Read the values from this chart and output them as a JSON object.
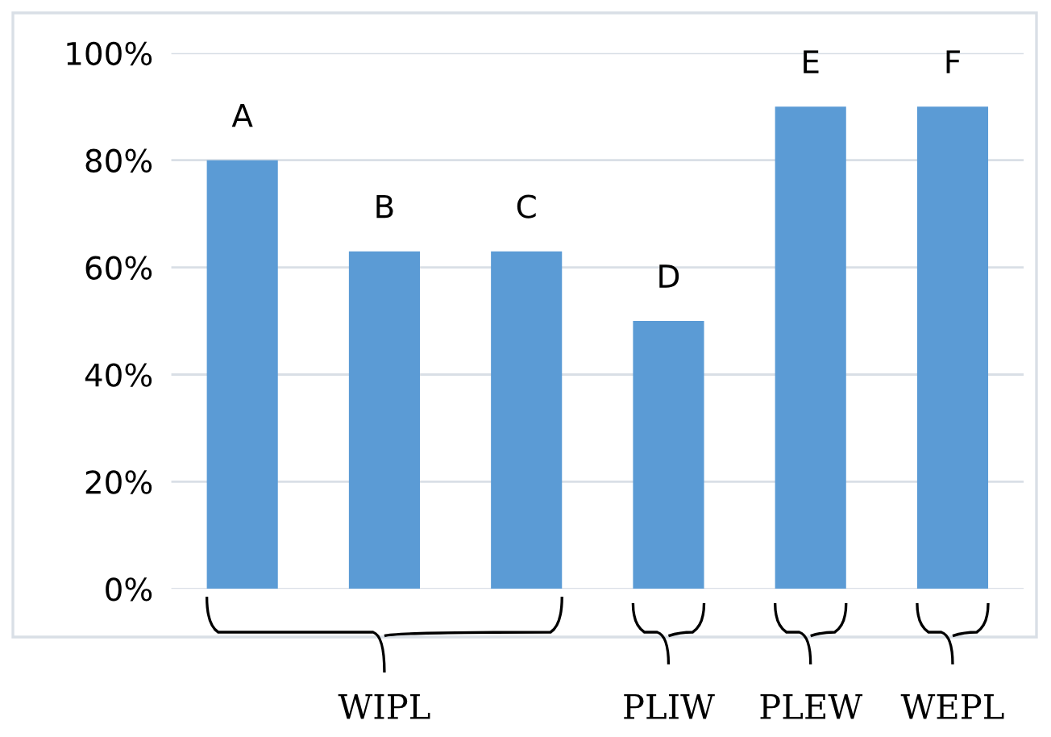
{
  "chart_data": {
    "type": "bar",
    "categories": [
      "A",
      "B",
      "C",
      "D",
      "E",
      "F"
    ],
    "values": [
      80,
      63,
      63,
      50,
      90,
      90
    ],
    "color": "#5b9bd5",
    "ylim": [
      0,
      100
    ],
    "yticks": [
      {
        "value": 0,
        "label": "0%"
      },
      {
        "value": 20,
        "label": "20%"
      },
      {
        "value": 40,
        "label": "40%"
      },
      {
        "value": 60,
        "label": "60%"
      },
      {
        "value": 80,
        "label": "80%"
      },
      {
        "value": 100,
        "label": "100%"
      }
    ],
    "grid": "y",
    "tick_labels": "y",
    "annotations": [
      "WIPL",
      "PLIW",
      "PLEW",
      "WEPL"
    ]
  }
}
